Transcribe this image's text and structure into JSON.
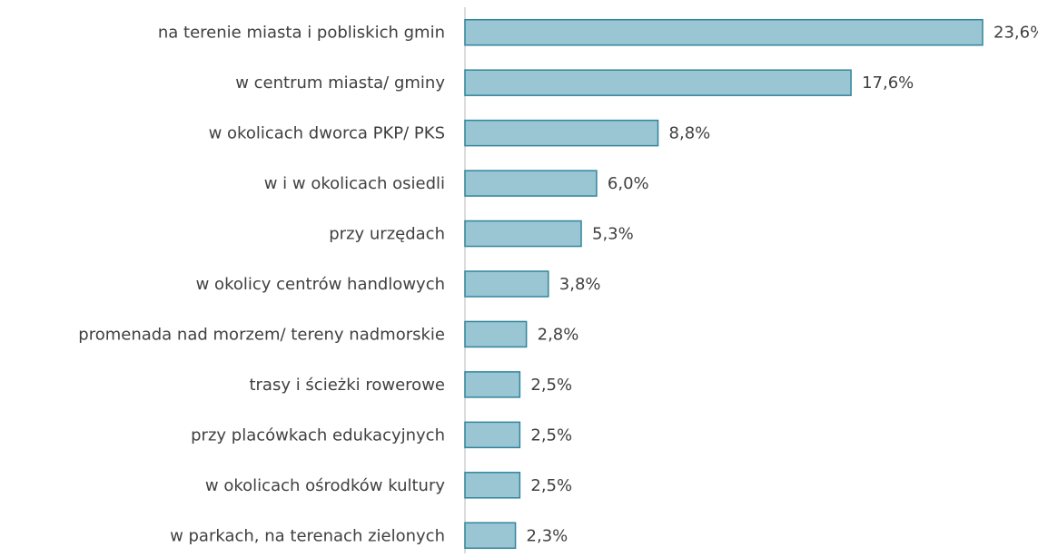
{
  "chart_data": {
    "type": "bar",
    "orientation": "horizontal",
    "categories": [
      "na terenie miasta i pobliskich gmin",
      "w centrum miasta/ gminy",
      "w okolicach dworca PKP/ PKS",
      "w i w okolicach osiedli",
      "przy urzędach",
      "w okolicy centrów handlowych",
      "promenada nad morzem/ tereny nadmorskie",
      "trasy i ścieżki rowerowe",
      "przy placówkach edukacyjnych",
      "w okolicach ośrodków kultury",
      "w parkach, na terenach zielonych"
    ],
    "values": [
      23.6,
      17.6,
      8.8,
      6.0,
      5.3,
      3.8,
      2.8,
      2.5,
      2.5,
      2.5,
      2.3
    ],
    "value_labels": [
      "23,6%",
      "17,6%",
      "8,8%",
      "6,0%",
      "5,3%",
      "3,8%",
      "2,8%",
      "2,5%",
      "2,5%",
      "2,5%",
      "2,3%"
    ],
    "color": "#9ac6d4",
    "edgecolor": "#31859c",
    "xlim": [
      0,
      23.6
    ]
  }
}
